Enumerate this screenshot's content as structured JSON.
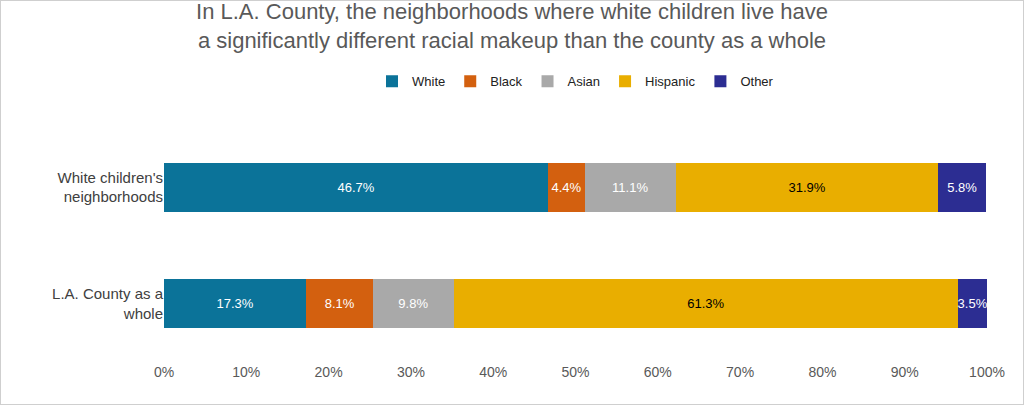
{
  "chart_data": {
    "type": "bar",
    "orientation": "horizontal",
    "stacked": true,
    "title": "In L.A. County, the neighborhoods where white children live have\na significantly different racial makeup than the county as a whole",
    "categories": [
      "White children's neighborhoods",
      "L.A. County as a whole"
    ],
    "series": [
      {
        "name": "White",
        "color": "#0b7399",
        "values": [
          46.7,
          17.3
        ],
        "value_labels": [
          "46.7%",
          "17.3%"
        ]
      },
      {
        "name": "Black",
        "color": "#d3600f",
        "values": [
          4.4,
          8.1
        ],
        "value_labels": [
          "4.4%",
          "8.1%"
        ]
      },
      {
        "name": "Asian",
        "color": "#a9a9a9",
        "values": [
          11.1,
          9.8
        ],
        "value_labels": [
          "11.1%",
          "9.8%"
        ]
      },
      {
        "name": "Hispanic",
        "color": "#e9ae00",
        "values": [
          31.9,
          61.3
        ],
        "value_labels": [
          "31.9%",
          "61.3%"
        ]
      },
      {
        "name": "Other",
        "color": "#2c2d92",
        "values": [
          5.8,
          3.5
        ],
        "value_labels": [
          "5.8%",
          "3.5%"
        ]
      }
    ],
    "xlim": [
      0,
      100
    ],
    "xticks": [
      {
        "value": 0,
        "label": "0%"
      },
      {
        "value": 10,
        "label": "10%"
      },
      {
        "value": 20,
        "label": "20%"
      },
      {
        "value": 30,
        "label": "30%"
      },
      {
        "value": 40,
        "label": "40%"
      },
      {
        "value": 50,
        "label": "50%"
      },
      {
        "value": 60,
        "label": "60%"
      },
      {
        "value": 70,
        "label": "70%"
      },
      {
        "value": 80,
        "label": "80%"
      },
      {
        "value": 90,
        "label": "90%"
      },
      {
        "value": 100,
        "label": "100%"
      }
    ],
    "grid": false,
    "legend": "top",
    "data_labels": true
  }
}
